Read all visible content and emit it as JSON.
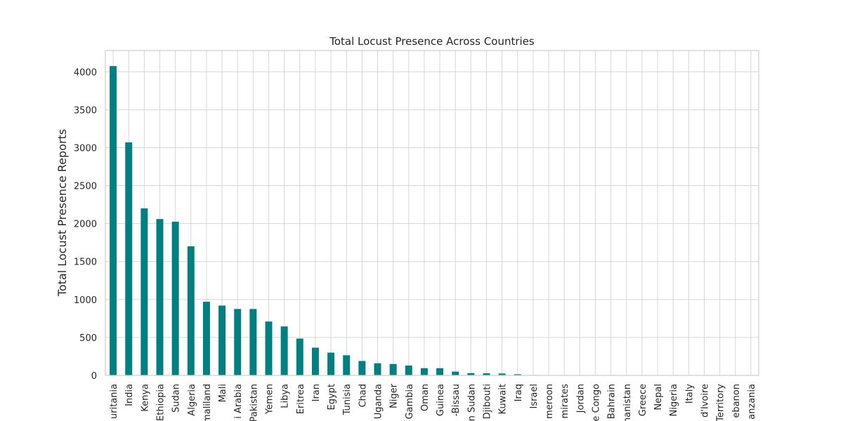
{
  "chart_data": {
    "type": "bar",
    "title": "Total Locust Presence Across Countries",
    "xlabel": "",
    "ylabel": "Total Locust Presence Reports",
    "ylim": [
      0,
      4280
    ],
    "yticks": [
      0,
      500,
      1000,
      1500,
      2000,
      2500,
      3000,
      3500,
      4000
    ],
    "grid": true,
    "bar_color": "#008080",
    "categories": [
      "Mauritania",
      "India",
      "Kenya",
      "Ethiopia",
      "Sudan",
      "Algeria",
      "Somaliland",
      "Mali",
      "Saudi Arabia",
      "Pakistan",
      "Yemen",
      "Libya",
      "Eritrea",
      "Iran",
      "Egypt",
      "Tunisia",
      "Chad",
      "Uganda",
      "Niger",
      "Gambia",
      "Oman",
      "Guinea",
      "Guinea-Bissau",
      "South Sudan",
      "Djibouti",
      "Kuwait",
      "Iraq",
      "Israel",
      "Cameroon",
      "United Arab Emirates",
      "Jordan",
      "Democratic Republic of the Congo",
      "Bahrain",
      "Afghanistan",
      "Greece",
      "Nepal",
      "Nigeria",
      "Italy",
      "Côte d'Ivoire",
      "Territory",
      "Lebanon",
      "Tanzania"
    ],
    "tick_labels_visible": [
      "uritania",
      "India",
      "Kenya",
      "Ethiopia",
      "Sudan",
      "Algeria",
      "maliland",
      "Mali",
      "i Arabia",
      "Pakistan",
      "Yemen",
      "Libya",
      "Eritrea",
      "Iran",
      "Egypt",
      "Tunisia",
      "Chad",
      "Uganda",
      "Niger",
      "Gambia",
      "Oman",
      "Guinea",
      "-Bissau",
      "n Sudan",
      "Djibouti",
      "Kuwait",
      "Iraq",
      "Israel",
      "meroon",
      "mirates",
      "Jordan",
      "e Congo",
      "Bahrain",
      "hanistan",
      "Greece",
      "Nepal",
      "Nigeria",
      "Italy",
      "d'Ivoire",
      "Territory",
      "ebanon",
      "anzania"
    ],
    "values": [
      4075,
      3070,
      2200,
      2060,
      2025,
      1700,
      970,
      920,
      875,
      875,
      710,
      645,
      485,
      365,
      300,
      265,
      190,
      160,
      150,
      130,
      95,
      95,
      50,
      30,
      28,
      25,
      15,
      5,
      4,
      3,
      3,
      2,
      2,
      2,
      1,
      1,
      1,
      1,
      1,
      1,
      1,
      1
    ]
  }
}
